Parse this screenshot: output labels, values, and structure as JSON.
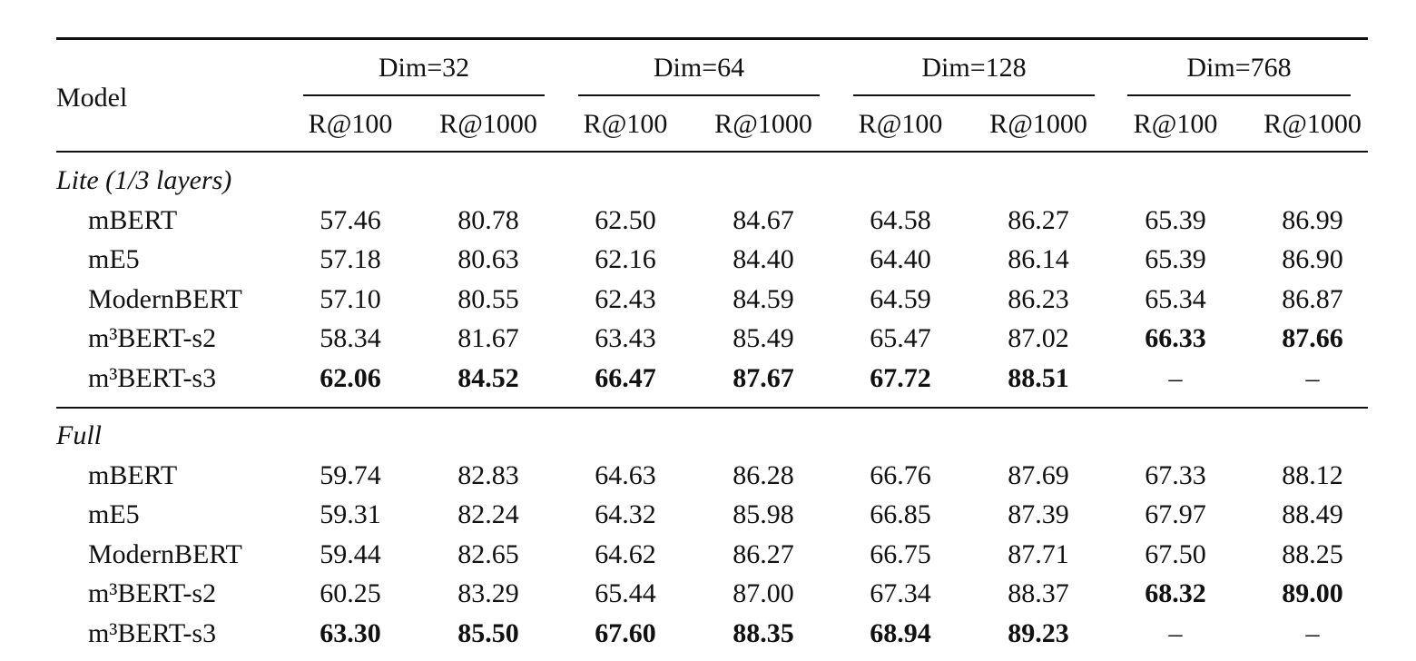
{
  "table": {
    "header": {
      "model": "Model",
      "groups": [
        {
          "label": "Dim=32",
          "columns": [
            "R@100",
            "R@1000"
          ]
        },
        {
          "label": "Dim=64",
          "columns": [
            "R@100",
            "R@1000"
          ]
        },
        {
          "label": "Dim=128",
          "columns": [
            "R@100",
            "R@1000"
          ]
        },
        {
          "label": "Dim=768",
          "columns": [
            "R@100",
            "R@1000"
          ]
        }
      ]
    },
    "sections": [
      {
        "title": "Lite (1/3 layers)",
        "rows": [
          {
            "model": "mBERT",
            "values": [
              "57.46",
              "80.78",
              "62.50",
              "84.67",
              "64.58",
              "86.27",
              "65.39",
              "86.99"
            ],
            "bold": []
          },
          {
            "model": "mE5",
            "values": [
              "57.18",
              "80.63",
              "62.16",
              "84.40",
              "64.40",
              "86.14",
              "65.39",
              "86.90"
            ],
            "bold": []
          },
          {
            "model": "ModernBERT",
            "values": [
              "57.10",
              "80.55",
              "62.43",
              "84.59",
              "64.59",
              "86.23",
              "65.34",
              "86.87"
            ],
            "bold": []
          },
          {
            "model": "m³BERT-s2",
            "values": [
              "58.34",
              "81.67",
              "63.43",
              "85.49",
              "65.47",
              "87.02",
              "66.33",
              "87.66"
            ],
            "bold": [
              6,
              7
            ]
          },
          {
            "model": "m³BERT-s3",
            "values": [
              "62.06",
              "84.52",
              "66.47",
              "87.67",
              "67.72",
              "88.51",
              "–",
              "–"
            ],
            "bold": [
              0,
              1,
              2,
              3,
              4,
              5
            ]
          }
        ]
      },
      {
        "title": "Full",
        "rows": [
          {
            "model": "mBERT",
            "values": [
              "59.74",
              "82.83",
              "64.63",
              "86.28",
              "66.76",
              "87.69",
              "67.33",
              "88.12"
            ],
            "bold": []
          },
          {
            "model": "mE5",
            "values": [
              "59.31",
              "82.24",
              "64.32",
              "85.98",
              "66.85",
              "87.39",
              "67.97",
              "88.49"
            ],
            "bold": []
          },
          {
            "model": "ModernBERT",
            "values": [
              "59.44",
              "82.65",
              "64.62",
              "86.27",
              "66.75",
              "87.71",
              "67.50",
              "88.25"
            ],
            "bold": []
          },
          {
            "model": "m³BERT-s2",
            "values": [
              "60.25",
              "83.29",
              "65.44",
              "87.00",
              "67.34",
              "88.37",
              "68.32",
              "89.00"
            ],
            "bold": [
              6,
              7
            ]
          },
          {
            "model": "m³BERT-s3",
            "values": [
              "63.30",
              "85.50",
              "67.60",
              "88.35",
              "68.94",
              "89.23",
              "–",
              "–"
            ],
            "bold": [
              0,
              1,
              2,
              3,
              4,
              5
            ]
          }
        ]
      }
    ]
  }
}
